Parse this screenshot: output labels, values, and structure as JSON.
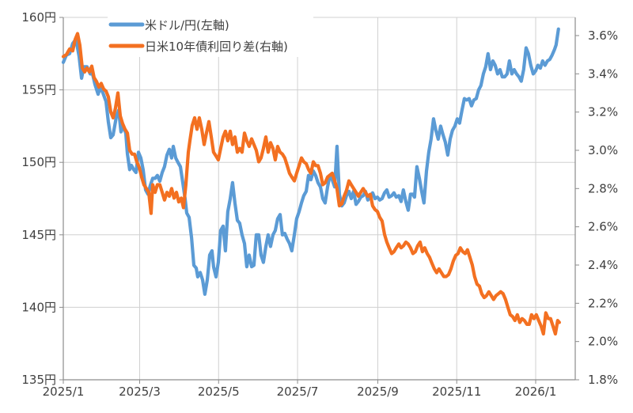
{
  "chart_data": {
    "type": "line",
    "title": "",
    "xlabel": "",
    "ylabel": "",
    "x_ticks": [
      "2025/1",
      "2025/3",
      "2025/5",
      "2025/7",
      "2025/9",
      "2025/11",
      "2026/1"
    ],
    "x_tick_days": [
      0,
      59,
      120,
      181,
      243,
      304,
      365
    ],
    "x_range_days": [
      0,
      396
    ],
    "left_axis": {
      "ylim": [
        135,
        160
      ],
      "ticks": [
        160,
        155,
        150,
        145,
        140,
        135
      ],
      "tick_labels": [
        "160円",
        "155円",
        "150円",
        "145円",
        "140円",
        "135円"
      ]
    },
    "right_axis": {
      "ylim": [
        1.8,
        3.695
      ],
      "ticks": [
        3.6,
        3.4,
        3.2,
        3.0,
        2.8,
        2.6,
        2.4,
        2.2,
        2.0,
        1.8
      ],
      "tick_labels": [
        "3.6%",
        "3.4%",
        "3.2%",
        "3.0%",
        "2.8%",
        "2.6%",
        "2.4%",
        "2.2%",
        "2.0%",
        "1.8%"
      ]
    },
    "grid": true,
    "legend": {
      "position": "top-left-inside",
      "entries": [
        {
          "label": "米ドル/円(左軸)",
          "color": "#5B9BD5"
        },
        {
          "label": "日米10年債利回り差(右軸)",
          "color": "#F37021"
        }
      ]
    },
    "series": [
      {
        "name": "米ドル/円(左軸)",
        "axis": "left",
        "color": "#5B9BD5",
        "x_days": [
          0,
          2.4,
          4.9,
          7.3,
          9.8,
          12.2,
          14.1,
          15.9,
          18.3,
          20.8,
          22.6,
          24.4,
          26.9,
          28.7,
          30.6,
          33,
          34.8,
          36.7,
          38.5,
          40.9,
          42.8,
          44.6,
          46.5,
          48.3,
          49.5,
          51.3,
          52.6,
          54.4,
          56.2,
          58.1,
          59.9,
          61.7,
          63.6,
          65.4,
          67.2,
          69.1,
          70.9,
          72.7,
          74.6,
          76.4,
          78.2,
          80.1,
          81.9,
          83.7,
          85,
          86.9,
          88.6,
          90.5,
          92.3,
          94.1,
          95.4,
          97.2,
          99.1,
          100.9,
          102.7,
          103.9,
          105.8,
          107.6,
          109.4,
          111.3,
          113.1,
          114.9,
          116.1,
          118,
          119.8,
          121.6,
          123.5,
          125.3,
          127.1,
          129,
          130.8,
          132.6,
          134.5,
          136.3,
          138.1,
          140,
          141.8,
          143.6,
          145.5,
          147.3,
          149.1,
          151,
          152.8,
          154.6,
          156.5,
          158.3,
          160.1,
          162,
          163.8,
          165.6,
          167.5,
          169.3,
          171.1,
          173,
          174.8,
          176.6,
          178.5,
          180.3,
          182.2,
          184,
          185.8,
          187.7,
          189.5,
          191.3,
          193.2,
          195,
          196.8,
          198.7,
          200.5,
          202.3,
          204.2,
          206,
          207.8,
          209.7,
          211.5,
          213.3,
          215.2,
          217,
          218.8,
          220.7,
          222.5,
          224.3,
          226.2,
          228,
          229.8,
          231.7,
          233.5,
          235.3,
          237.2,
          239,
          240.8,
          242.7,
          244.5,
          246.3,
          248.2,
          250,
          251.8,
          253.7,
          255.5,
          257.3,
          259.2,
          261,
          262.8,
          264.7,
          266.5,
          268.3,
          270.2,
          271.4,
          273.2,
          275.1,
          276.9,
          278.7,
          280.6,
          282.4,
          284.2,
          286.1,
          287.9,
          289.7,
          291.6,
          293.4,
          295.2,
          297.1,
          298.9,
          300.7,
          302.6,
          304.4,
          306.2,
          308.1,
          309.9,
          311.7,
          313.6,
          315.4,
          317.2,
          319.1,
          320.9,
          322.7,
          324.6,
          326.4,
          328.2,
          330.1,
          331.9,
          333.7,
          335.6,
          337.4,
          339.2,
          341.1,
          342.9,
          344.7,
          346.6,
          348.4,
          350.2,
          352.1,
          353.9,
          355.7,
          357.6,
          359.4,
          361.2,
          363.1,
          364.9,
          366.7,
          368.6,
          370.4,
          372.2,
          374.1,
          375.9,
          377.7,
          379.6,
          380.8,
          382.6
        ],
        "values": [
          156.9,
          157.4,
          157.5,
          158.2,
          158.5,
          157.3,
          155.8,
          156.6,
          156.6,
          156.1,
          156.1,
          155.4,
          154.7,
          155.2,
          154.8,
          154.2,
          152.8,
          151.7,
          151.9,
          153.1,
          153.6,
          152.1,
          152.5,
          152,
          150.6,
          149.5,
          149.8,
          149.5,
          149.3,
          150.7,
          150.3,
          149.5,
          148.1,
          147.8,
          148.4,
          148.9,
          148.9,
          149.1,
          148.7,
          149.3,
          149.7,
          150.5,
          150.9,
          150.3,
          151.1,
          150.3,
          150,
          149.7,
          148.6,
          147.5,
          146.5,
          146.2,
          144.8,
          142.9,
          142.7,
          142.1,
          142.4,
          141.9,
          140.9,
          141.9,
          143.6,
          143.9,
          142.8,
          142.1,
          143.1,
          145.3,
          145.6,
          143.9,
          146.6,
          147.5,
          148.6,
          147.2,
          146,
          145.8,
          145,
          144.4,
          142.8,
          143.6,
          142.8,
          142.9,
          145,
          145,
          143.6,
          143.1,
          144.2,
          145,
          144.2,
          145,
          145.3,
          146.1,
          146.4,
          145,
          145.1,
          144.7,
          144.4,
          143.9,
          145,
          146.1,
          146.6,
          147.2,
          147.7,
          148,
          149.1,
          148.8,
          149.4,
          149.1,
          148.6,
          148.3,
          147.5,
          147.2,
          148.3,
          149.1,
          148.8,
          148.3,
          151.1,
          147.8,
          147,
          147.2,
          147.7,
          148,
          147.5,
          148,
          147.1,
          147.3,
          147.6,
          147.7,
          148,
          147.4,
          147.6,
          147.9,
          147.5,
          147.6,
          147.4,
          147.5,
          147.9,
          148.1,
          147.6,
          147.7,
          147.9,
          147.6,
          147.7,
          147.3,
          148.1,
          147.3,
          146.7,
          147.8,
          147.8,
          147.6,
          149.7,
          148.9,
          148,
          147.2,
          149.4,
          150.7,
          151.6,
          153,
          152.2,
          151.6,
          152.5,
          151.9,
          151.4,
          150.5,
          151.6,
          152.2,
          152.5,
          153,
          152.7,
          153.6,
          154.4,
          154.3,
          154.4,
          153.9,
          154.3,
          154.4,
          155,
          155.3,
          156.1,
          156.6,
          157.5,
          156.4,
          157,
          156.7,
          156.1,
          156.4,
          155.9,
          155.9,
          156.1,
          157,
          156.1,
          156.4,
          156.1,
          155.9,
          155.6,
          156.4,
          157.9,
          157.5,
          156.7,
          156.1,
          156.3,
          156.7,
          156.5,
          157,
          156.7,
          157,
          157.1,
          157.4,
          157.8,
          158.1,
          159.2,
          158.7,
          158.3
        ]
      },
      {
        "name": "日米10年債利回り差(右軸)",
        "axis": "right",
        "color": "#F37021",
        "x_days": [
          0,
          2.4,
          4.9,
          7.3,
          9.2,
          11,
          12.8,
          14.7,
          16.5,
          18.3,
          20.2,
          22,
          23.8,
          25.7,
          27.5,
          29.3,
          31.2,
          33,
          34.8,
          36.7,
          38.5,
          40.3,
          42.2,
          44,
          45.8,
          47.7,
          49.5,
          51.3,
          53.2,
          55,
          56.8,
          58.7,
          60.5,
          62.3,
          64.2,
          66,
          67.8,
          69.1,
          70.9,
          72.7,
          74.6,
          76.4,
          78.2,
          80.1,
          81.9,
          83.7,
          85.6,
          87.4,
          89.2,
          91.1,
          92.9,
          94.7,
          96.6,
          97.8,
          99.6,
          101.5,
          103.3,
          105.1,
          107,
          108.8,
          110.6,
          112.5,
          114.3,
          116.1,
          118,
          119.8,
          121.6,
          123.5,
          125.3,
          127.1,
          129,
          130.8,
          132.6,
          134.5,
          136.3,
          138.1,
          140,
          141.8,
          143.6,
          145.5,
          147.3,
          149.1,
          151,
          152.8,
          154.6,
          156.5,
          158.3,
          160.1,
          162,
          163.8,
          165.6,
          167.5,
          169.3,
          171.1,
          173,
          174.8,
          176.6,
          178.5,
          180.3,
          182.2,
          184,
          185.8,
          187.7,
          189.5,
          191.3,
          193.2,
          195,
          196.8,
          198.7,
          200.5,
          202.3,
          204.2,
          206,
          207.8,
          209.7,
          211.5,
          213.3,
          215.2,
          217,
          218.8,
          220.7,
          222.5,
          224.3,
          226.2,
          228,
          229.8,
          231.7,
          233.5,
          235.3,
          237.2,
          239,
          240.8,
          242.7,
          244.5,
          246.3,
          248.2,
          250,
          251.8,
          253.7,
          255.5,
          257.3,
          259.2,
          261,
          262.8,
          264.7,
          266.5,
          268.3,
          270.2,
          272,
          273.8,
          275.7,
          277.5,
          279.3,
          281.2,
          283,
          284.8,
          286.7,
          288.5,
          290.3,
          292.2,
          294,
          295.8,
          297.7,
          299.5,
          301.3,
          303.2,
          305,
          306.8,
          308.7,
          310.5,
          312.3,
          314.2,
          316,
          317.8,
          319.7,
          321.5,
          323.3,
          325.2,
          327,
          328.8,
          330.7,
          332.5,
          334.3,
          336.2,
          338,
          339.8,
          341.7,
          343.5,
          345.3,
          347.2,
          349,
          350.8,
          352.7,
          354.5,
          356.3,
          358.2,
          360,
          361.8,
          363.7,
          365.5,
          367.3,
          369.2,
          371,
          372.8,
          374.7,
          376.5,
          378.4,
          380.2,
          382,
          383.3,
          384.5
        ],
        "values": [
          3.49,
          3.5,
          3.53,
          3.52,
          3.58,
          3.61,
          3.55,
          3.43,
          3.41,
          3.43,
          3.41,
          3.44,
          3.38,
          3.36,
          3.33,
          3.35,
          3.32,
          3.31,
          3.28,
          3.2,
          3.17,
          3.22,
          3.3,
          3.18,
          3.14,
          3.11,
          3.09,
          3,
          2.98,
          2.98,
          2.94,
          2.91,
          2.86,
          2.82,
          2.8,
          2.78,
          2.67,
          2.82,
          2.78,
          2.82,
          2.82,
          2.78,
          2.74,
          2.78,
          2.76,
          2.8,
          2.75,
          2.78,
          2.73,
          2.75,
          2.7,
          2.82,
          2.99,
          3.05,
          3.13,
          3.17,
          3.11,
          3.17,
          3.11,
          3.03,
          3.09,
          3.15,
          3.07,
          2.99,
          2.97,
          2.95,
          3.01,
          3.07,
          3.1,
          3.05,
          3.1,
          3.03,
          3.07,
          2.99,
          3.01,
          2.99,
          3.09,
          3.05,
          3.02,
          3.06,
          3.03,
          3,
          2.94,
          2.96,
          3.01,
          3.07,
          2.99,
          3.04,
          3.01,
          2.95,
          3.02,
          2.99,
          2.98,
          2.96,
          2.92,
          2.88,
          2.86,
          2.84,
          2.88,
          2.92,
          2.96,
          2.94,
          2.93,
          2.9,
          2.88,
          2.94,
          2.92,
          2.92,
          2.88,
          2.82,
          2.83,
          2.86,
          2.87,
          2.88,
          2.84,
          2.8,
          2.71,
          2.72,
          2.76,
          2.79,
          2.84,
          2.82,
          2.8,
          2.78,
          2.76,
          2.78,
          2.8,
          2.78,
          2.76,
          2.77,
          2.71,
          2.69,
          2.68,
          2.65,
          2.63,
          2.56,
          2.52,
          2.49,
          2.46,
          2.47,
          2.49,
          2.51,
          2.49,
          2.5,
          2.52,
          2.51,
          2.49,
          2.46,
          2.47,
          2.5,
          2.52,
          2.47,
          2.49,
          2.46,
          2.44,
          2.41,
          2.38,
          2.36,
          2.38,
          2.36,
          2.34,
          2.34,
          2.35,
          2.38,
          2.42,
          2.45,
          2.46,
          2.49,
          2.47,
          2.46,
          2.48,
          2.44,
          2.4,
          2.34,
          2.3,
          2.29,
          2.25,
          2.23,
          2.24,
          2.26,
          2.24,
          2.22,
          2.24,
          2.25,
          2.26,
          2.25,
          2.22,
          2.18,
          2.14,
          2.13,
          2.11,
          2.14,
          2.1,
          2.12,
          2.11,
          2.09,
          2.09,
          2.14,
          2.12,
          2.14,
          2.11,
          2.08,
          2.04,
          2.15,
          2.12,
          2.12,
          2.08,
          2.04,
          2.11,
          2.1
        ]
      }
    ]
  }
}
